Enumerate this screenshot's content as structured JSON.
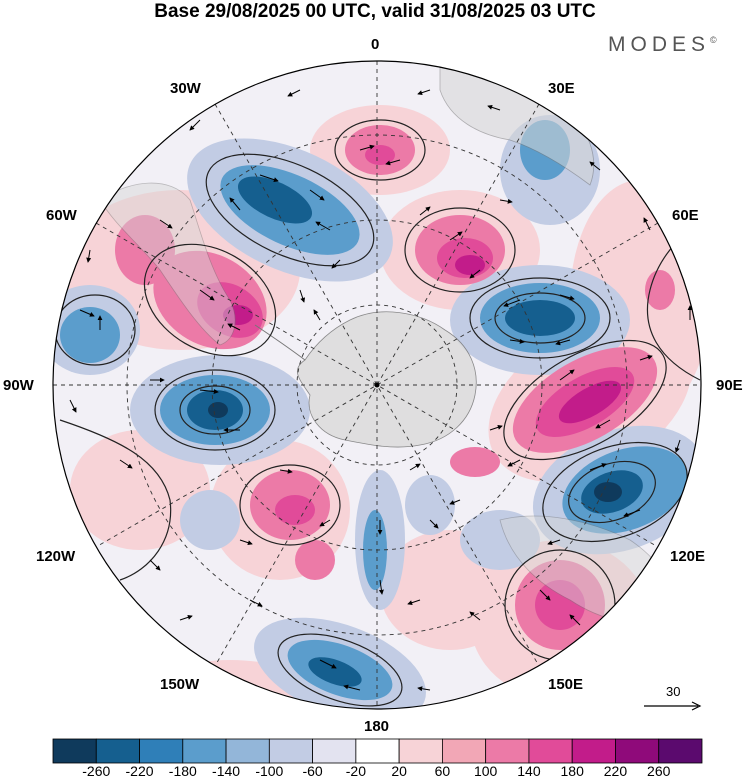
{
  "title": "Base 29/08/2025 00 UTC, valid 31/08/2025 03 UTC",
  "brand": "MODES",
  "brand_mark": "©",
  "longitude_labels": {
    "top": "0",
    "top_left": "30W",
    "top_right": "30E",
    "left_upper": "60W",
    "right_upper": "60E",
    "left": "90W",
    "right": "90E",
    "left_lower": "120W",
    "right_lower": "120E",
    "bottom_left": "150W",
    "bottom_right": "150E",
    "bottom": "180"
  },
  "reference_vector": "30",
  "colorbar": {
    "labels": [
      "-260",
      "-220",
      "-180",
      "-140",
      "-100",
      "-60",
      "-20",
      "20",
      "60",
      "100",
      "140",
      "180",
      "220",
      "260"
    ],
    "colors": [
      "#0f3a5c",
      "#155f8f",
      "#2f7fb8",
      "#5b9dcc",
      "#93b6d9",
      "#c2cce4",
      "#e3e3f0",
      "#ffffff",
      "#f7d3d7",
      "#f2a7b6",
      "#ec7aa7",
      "#e14b99",
      "#c21c8a",
      "#8f0a7a",
      "#5b0a6e"
    ]
  },
  "map_colors": {
    "land": "#d6d6d6",
    "blue_light": "#c2cce4",
    "blue_mid": "#5b9dcc",
    "blue_dark": "#155f8f",
    "pink_light": "#f7d3d7",
    "pink_mid": "#ec7aa7",
    "pink_dark": "#c21c8a"
  }
}
